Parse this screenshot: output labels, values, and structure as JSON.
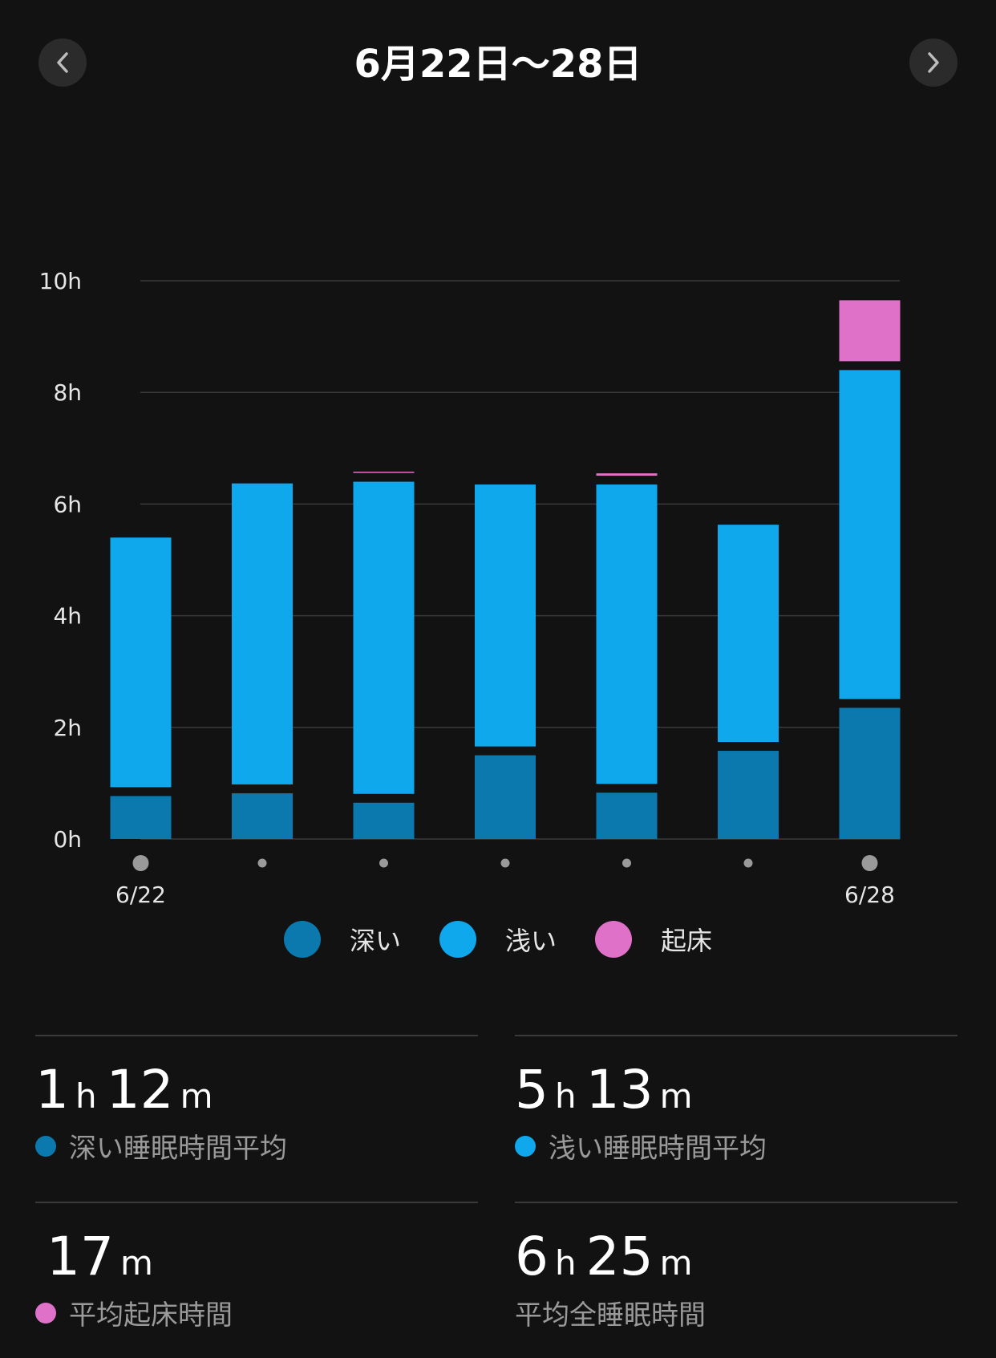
{
  "header": {
    "title": "6月22日〜28日"
  },
  "colors": {
    "deep": "#0b79ad",
    "light": "#0fa8ec",
    "awake": "#e071c9",
    "grid": "#3a3a3a",
    "axis_text": "#e6e6e6"
  },
  "chart_data": {
    "type": "bar",
    "stacked": true,
    "categories": [
      "6/22",
      "6/23",
      "6/24",
      "6/25",
      "6/26",
      "6/27",
      "6/28"
    ],
    "x_tick_labels": [
      "6/22",
      "",
      "",
      "",
      "",
      "",
      "6/28"
    ],
    "series": [
      {
        "name": "深い",
        "values": [
          0.77,
          0.82,
          0.65,
          1.5,
          0.83,
          1.58,
          2.35
        ]
      },
      {
        "name": "浅い",
        "values": [
          4.63,
          5.55,
          5.75,
          4.85,
          5.52,
          4.05,
          6.05
        ]
      },
      {
        "name": "起床",
        "values": [
          0.1,
          0.0,
          0.18,
          0.12,
          0.2,
          0.13,
          1.25
        ]
      }
    ],
    "ylim": [
      0,
      10
    ],
    "y_ticks": [
      "0h",
      "2h",
      "4h",
      "6h",
      "8h",
      "10h"
    ],
    "grid": true,
    "legend": "bottom"
  },
  "legend": [
    {
      "label": "深い"
    },
    {
      "label": "浅い"
    },
    {
      "label": "起床"
    }
  ],
  "stats": {
    "deep": {
      "h": "1",
      "h_unit": "h",
      "m": "12",
      "m_unit": "m",
      "label": "深い睡眠時間平均"
    },
    "light": {
      "h": "5",
      "h_unit": "h",
      "m": "13",
      "m_unit": "m",
      "label": "浅い睡眠時間平均"
    },
    "awake": {
      "m": "17",
      "m_unit": "m",
      "label": "平均起床時間"
    },
    "total": {
      "h": "6",
      "h_unit": "h",
      "m": "25",
      "m_unit": "m",
      "label": "平均全睡眠時間"
    }
  },
  "icons": {
    "prev": "chevron-left-icon",
    "next": "chevron-right-icon"
  }
}
